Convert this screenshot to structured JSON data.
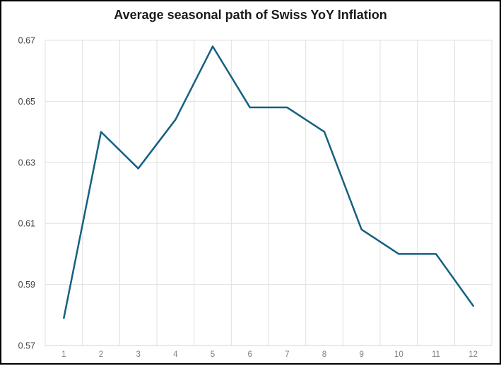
{
  "window": {
    "background_color": "#ffffff",
    "frame_border_color": "#000000"
  },
  "chart_data": {
    "type": "line",
    "title": "Average seasonal path of Swiss YoY Inflation",
    "xlabel": "",
    "ylabel": "",
    "categories": [
      "1",
      "2",
      "3",
      "4",
      "5",
      "6",
      "7",
      "8",
      "9",
      "10",
      "11",
      "12"
    ],
    "values": [
      0.579,
      0.64,
      0.628,
      0.644,
      0.668,
      0.648,
      0.648,
      0.64,
      0.608,
      0.6,
      0.6,
      0.583
    ],
    "ylim": [
      0.57,
      0.67
    ],
    "yticks": [
      0.57,
      0.59,
      0.61,
      0.63,
      0.65,
      0.67
    ],
    "ytick_labels": [
      "0.57",
      "0.59",
      "0.61",
      "0.63",
      "0.65",
      "0.67"
    ],
    "grid": true,
    "legend": false,
    "line_color": "#156082",
    "line_width": 2.5,
    "gridline_color": "#e0e0e0",
    "axis_line_color": "#d6d6d6",
    "xtick_label_color": "#7f7f7f",
    "ytick_label_color": "#404040",
    "title_color": "#1a1a1a"
  }
}
